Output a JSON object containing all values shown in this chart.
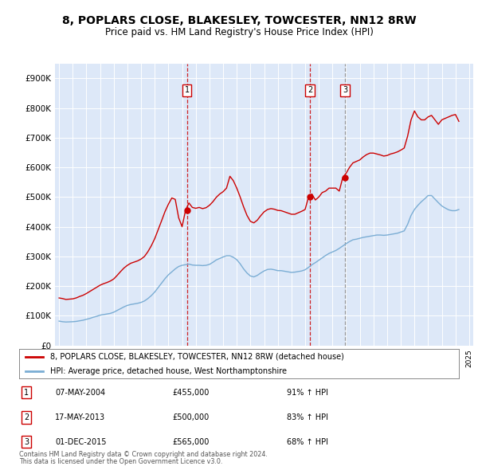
{
  "title": "8, POPLARS CLOSE, BLAKESLEY, TOWCESTER, NN12 8RW",
  "subtitle": "Price paid vs. HM Land Registry's House Price Index (HPI)",
  "title_fontsize": 10,
  "subtitle_fontsize": 8.5,
  "ylim": [
    0,
    950000
  ],
  "yticks": [
    0,
    100000,
    200000,
    300000,
    400000,
    500000,
    600000,
    700000,
    800000,
    900000
  ],
  "ytick_labels": [
    "£0",
    "£100K",
    "£200K",
    "£300K",
    "£400K",
    "£500K",
    "£600K",
    "£700K",
    "£800K",
    "£900K"
  ],
  "background_color": "#ffffff",
  "plot_bg_color": "#dde8f8",
  "grid_color": "#ffffff",
  "red_line_color": "#cc0000",
  "blue_line_color": "#7aadd4",
  "vline_color_red": "#cc0000",
  "vline_color_gray": "#888888",
  "legend_label_red": "8, POPLARS CLOSE, BLAKESLEY, TOWCESTER, NN12 8RW (detached house)",
  "legend_label_blue": "HPI: Average price, detached house, West Northamptonshire",
  "transactions": [
    {
      "num": 1,
      "date": "07-MAY-2004",
      "price": 455000,
      "hpi_pct": "91%",
      "x": 2004.35,
      "vline": "red"
    },
    {
      "num": 2,
      "date": "17-MAY-2013",
      "price": 500000,
      "hpi_pct": "83%",
      "x": 2013.37,
      "vline": "red"
    },
    {
      "num": 3,
      "date": "01-DEC-2015",
      "price": 565000,
      "hpi_pct": "68%",
      "x": 2015.92,
      "vline": "gray"
    }
  ],
  "footer_line1": "Contains HM Land Registry data © Crown copyright and database right 2024.",
  "footer_line2": "This data is licensed under the Open Government Licence v3.0.",
  "hpi_data_years": [
    1995.0,
    1995.25,
    1995.5,
    1995.75,
    1996.0,
    1996.25,
    1996.5,
    1996.75,
    1997.0,
    1997.25,
    1997.5,
    1997.75,
    1998.0,
    1998.25,
    1998.5,
    1998.75,
    1999.0,
    1999.25,
    1999.5,
    1999.75,
    2000.0,
    2000.25,
    2000.5,
    2000.75,
    2001.0,
    2001.25,
    2001.5,
    2001.75,
    2002.0,
    2002.25,
    2002.5,
    2002.75,
    2003.0,
    2003.25,
    2003.5,
    2003.75,
    2004.0,
    2004.25,
    2004.5,
    2004.75,
    2005.0,
    2005.25,
    2005.5,
    2005.75,
    2006.0,
    2006.25,
    2006.5,
    2006.75,
    2007.0,
    2007.25,
    2007.5,
    2007.75,
    2008.0,
    2008.25,
    2008.5,
    2008.75,
    2009.0,
    2009.25,
    2009.5,
    2009.75,
    2010.0,
    2010.25,
    2010.5,
    2010.75,
    2011.0,
    2011.25,
    2011.5,
    2011.75,
    2012.0,
    2012.25,
    2012.5,
    2012.75,
    2013.0,
    2013.25,
    2013.5,
    2013.75,
    2014.0,
    2014.25,
    2014.5,
    2014.75,
    2015.0,
    2015.25,
    2015.5,
    2015.75,
    2016.0,
    2016.25,
    2016.5,
    2016.75,
    2017.0,
    2017.25,
    2017.5,
    2017.75,
    2018.0,
    2018.25,
    2018.5,
    2018.75,
    2019.0,
    2019.25,
    2019.5,
    2019.75,
    2020.0,
    2020.25,
    2020.5,
    2020.75,
    2021.0,
    2021.25,
    2021.5,
    2021.75,
    2022.0,
    2022.25,
    2022.5,
    2022.75,
    2023.0,
    2023.25,
    2023.5,
    2023.75,
    2024.0,
    2024.25
  ],
  "hpi_data_values": [
    82000,
    80000,
    79000,
    79500,
    80000,
    81000,
    83000,
    85000,
    88000,
    91000,
    95000,
    98000,
    102000,
    104000,
    106000,
    108000,
    112000,
    118000,
    124000,
    130000,
    135000,
    138000,
    140000,
    142000,
    145000,
    150000,
    158000,
    168000,
    180000,
    195000,
    210000,
    225000,
    238000,
    248000,
    258000,
    266000,
    270000,
    272000,
    274000,
    271000,
    270000,
    270000,
    269000,
    270000,
    273000,
    280000,
    288000,
    293000,
    298000,
    302000,
    302000,
    297000,
    289000,
    275000,
    258000,
    244000,
    234000,
    231000,
    236000,
    244000,
    251000,
    256000,
    257000,
    255000,
    252000,
    252000,
    250000,
    248000,
    246000,
    247000,
    249000,
    251000,
    255000,
    263000,
    272000,
    279000,
    287000,
    295000,
    303000,
    310000,
    315000,
    320000,
    327000,
    335000,
    343000,
    350000,
    356000,
    358000,
    361000,
    364000,
    366000,
    368000,
    370000,
    372000,
    372000,
    371000,
    372000,
    374000,
    376000,
    378000,
    382000,
    386000,
    408000,
    438000,
    458000,
    472000,
    484000,
    494000,
    505000,
    505000,
    493000,
    481000,
    470000,
    463000,
    457000,
    454000,
    454000,
    458000
  ],
  "prop_data_years": [
    1995.0,
    1995.25,
    1995.5,
    1995.75,
    1996.0,
    1996.25,
    1996.5,
    1996.75,
    1997.0,
    1997.25,
    1997.5,
    1997.75,
    1998.0,
    1998.25,
    1998.5,
    1998.75,
    1999.0,
    1999.25,
    1999.5,
    1999.75,
    2000.0,
    2000.25,
    2000.5,
    2000.75,
    2001.0,
    2001.25,
    2001.5,
    2001.75,
    2002.0,
    2002.25,
    2002.5,
    2002.75,
    2003.0,
    2003.25,
    2003.5,
    2003.75,
    2004.0,
    2004.25,
    2004.5,
    2004.75,
    2005.0,
    2005.25,
    2005.5,
    2005.75,
    2006.0,
    2006.25,
    2006.5,
    2006.75,
    2007.0,
    2007.25,
    2007.5,
    2007.75,
    2008.0,
    2008.25,
    2008.5,
    2008.75,
    2009.0,
    2009.25,
    2009.5,
    2009.75,
    2010.0,
    2010.25,
    2010.5,
    2010.75,
    2011.0,
    2011.25,
    2011.5,
    2011.75,
    2012.0,
    2012.25,
    2012.5,
    2012.75,
    2013.0,
    2013.25,
    2013.5,
    2013.75,
    2014.0,
    2014.25,
    2014.5,
    2014.75,
    2015.0,
    2015.25,
    2015.5,
    2015.75,
    2016.0,
    2016.25,
    2016.5,
    2016.75,
    2017.0,
    2017.25,
    2017.5,
    2017.75,
    2018.0,
    2018.25,
    2018.5,
    2018.75,
    2019.0,
    2019.25,
    2019.5,
    2019.75,
    2020.0,
    2020.25,
    2020.5,
    2020.75,
    2021.0,
    2021.25,
    2021.5,
    2021.75,
    2022.0,
    2022.25,
    2022.5,
    2022.75,
    2023.0,
    2023.25,
    2023.5,
    2023.75,
    2024.0,
    2024.25
  ],
  "prop_data_values": [
    160000,
    158000,
    155000,
    156000,
    157000,
    160000,
    165000,
    169000,
    175000,
    182000,
    189000,
    196000,
    203000,
    208000,
    212000,
    217000,
    224000,
    236000,
    249000,
    261000,
    270000,
    277000,
    281000,
    285000,
    291000,
    300000,
    316000,
    336000,
    360000,
    390000,
    420000,
    451000,
    476000,
    497000,
    492000,
    430000,
    400000,
    455000,
    480000,
    465000,
    462000,
    465000,
    461000,
    464000,
    472000,
    484000,
    499000,
    510000,
    518000,
    530000,
    570000,
    555000,
    530000,
    500000,
    467000,
    438000,
    418000,
    413000,
    422000,
    437000,
    450000,
    458000,
    461000,
    459000,
    455000,
    454000,
    450000,
    446000,
    442000,
    442000,
    447000,
    452000,
    458000,
    500000,
    510000,
    490000,
    500000,
    515000,
    520000,
    530000,
    530000,
    530000,
    520000,
    565000,
    580000,
    600000,
    615000,
    620000,
    625000,
    635000,
    643000,
    648000,
    648000,
    645000,
    642000,
    638000,
    640000,
    645000,
    648000,
    652000,
    658000,
    665000,
    705000,
    760000,
    790000,
    770000,
    760000,
    760000,
    770000,
    775000,
    760000,
    745000,
    760000,
    765000,
    770000,
    775000,
    778000,
    755000
  ]
}
